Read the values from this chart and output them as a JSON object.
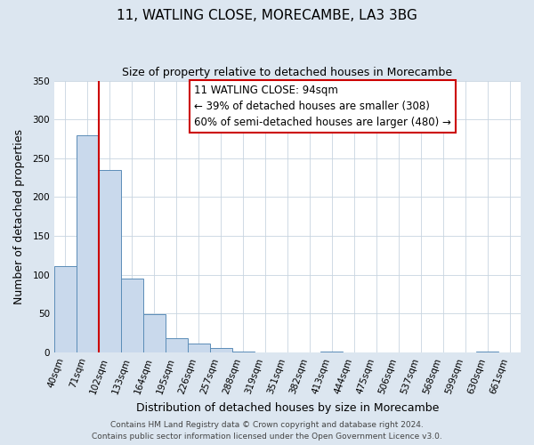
{
  "title": "11, WATLING CLOSE, MORECAMBE, LA3 3BG",
  "subtitle": "Size of property relative to detached houses in Morecambe",
  "xlabel": "Distribution of detached houses by size in Morecambe",
  "ylabel": "Number of detached properties",
  "bin_labels": [
    "40sqm",
    "71sqm",
    "102sqm",
    "133sqm",
    "164sqm",
    "195sqm",
    "226sqm",
    "257sqm",
    "288sqm",
    "319sqm",
    "351sqm",
    "382sqm",
    "413sqm",
    "444sqm",
    "475sqm",
    "506sqm",
    "537sqm",
    "568sqm",
    "599sqm",
    "630sqm",
    "661sqm"
  ],
  "bar_heights": [
    111,
    279,
    235,
    95,
    49,
    18,
    11,
    5,
    1,
    0,
    0,
    0,
    1,
    0,
    0,
    0,
    0,
    0,
    0,
    1,
    0
  ],
  "bar_color": "#c9d9ec",
  "bar_edgecolor": "#5b8db8",
  "marker_label": "11 WATLING CLOSE: 94sqm",
  "annotation_line1": "← 39% of detached houses are smaller (308)",
  "annotation_line2": "60% of semi-detached houses are larger (480) →",
  "annotation_box_color": "#ffffff",
  "annotation_box_edgecolor": "#cc0000",
  "annotation_text_color": "#000000",
  "marker_line_color": "#cc0000",
  "ylim": [
    0,
    350
  ],
  "yticks": [
    0,
    50,
    100,
    150,
    200,
    250,
    300,
    350
  ],
  "footer1": "Contains HM Land Registry data © Crown copyright and database right 2024.",
  "footer2": "Contains public sector information licensed under the Open Government Licence v3.0.",
  "fig_facecolor": "#dce6f0",
  "plot_facecolor": "#ffffff",
  "grid_color": "#c8d4e0",
  "title_fontsize": 11,
  "subtitle_fontsize": 9,
  "xlabel_fontsize": 9,
  "ylabel_fontsize": 9,
  "tick_fontsize": 7.5,
  "annotation_fontsize": 8.5,
  "footer_fontsize": 6.5
}
